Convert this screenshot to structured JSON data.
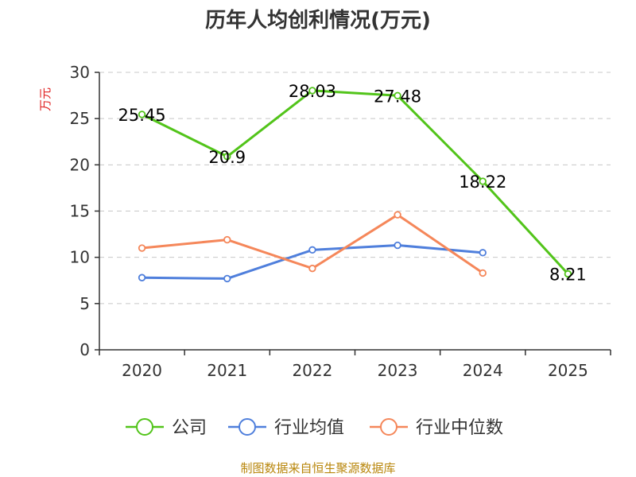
{
  "chart_data": {
    "type": "line",
    "title": "历年人均创利情况(万元)",
    "ylabel": "万元",
    "xlabel": "",
    "categories": [
      "2020",
      "2021",
      "2022",
      "2023",
      "2024",
      "2025"
    ],
    "ylim": [
      0,
      30
    ],
    "yticks": [
      0,
      5,
      10,
      15,
      20,
      25,
      30
    ],
    "grid": true,
    "legend_position": "bottom",
    "series": [
      {
        "name": "公司",
        "color": "#52c41a",
        "values": [
          25.45,
          20.9,
          28.03,
          27.48,
          18.22,
          8.21
        ],
        "labels": [
          "25.45",
          "20.9",
          "28.03",
          "27.48",
          "18.22",
          "8.21"
        ]
      },
      {
        "name": "行业均值",
        "color": "#4f7fdc",
        "values": [
          7.8,
          7.7,
          10.8,
          11.3,
          10.5,
          null
        ]
      },
      {
        "name": "行业中位数",
        "color": "#f5875a",
        "values": [
          11.0,
          11.9,
          8.8,
          14.6,
          8.3,
          null
        ]
      }
    ]
  },
  "source": "制图数据来自恒生聚源数据库"
}
